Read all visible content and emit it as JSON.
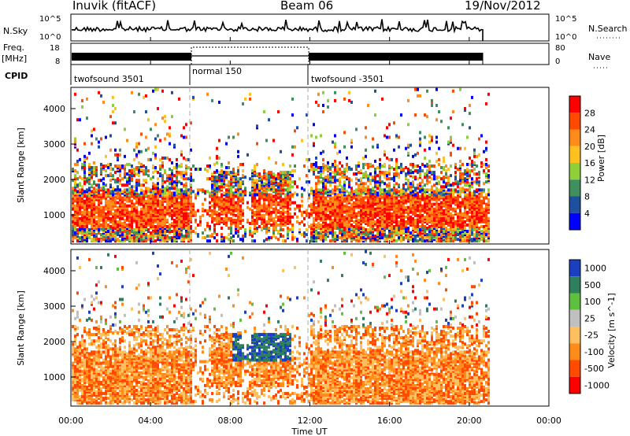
{
  "header": {
    "site": "Inuvik (fitACF)",
    "beam": "Beam 06",
    "date": "19/Nov/2012"
  },
  "strips": {
    "nsky": {
      "label": "N.Sky",
      "ticks": [
        "10^5",
        "10^0"
      ],
      "right_ticks": [
        "10^5",
        "10^0"
      ],
      "right_label": "N.Search"
    },
    "freq": {
      "label_top": "Freq.",
      "label_bottom": "[MHz]",
      "ticks": [
        "18",
        "8"
      ],
      "right_ticks": [
        "80",
        "0"
      ],
      "right_label": "Nave"
    },
    "cpid": {
      "label": "CPID",
      "segments": [
        {
          "name": "twofsound 3501",
          "start": 0,
          "end": 6
        },
        {
          "name": "normal 150",
          "start": 6,
          "end": 12
        },
        {
          "name": "twofsound -3501",
          "start": 12,
          "end": 21
        }
      ]
    }
  },
  "chart_data": [
    {
      "type": "heatmap",
      "title": "",
      "xlabel": "",
      "ylabel": "Slant Range [km]",
      "xlim": [
        0,
        24
      ],
      "ylim": [
        180,
        4600
      ],
      "yticks": [
        1000,
        2000,
        3000,
        4000
      ],
      "colorbar_label": "Power [dB]",
      "colorbar_ticks": [
        "28",
        "24",
        "20",
        "16",
        "12",
        "8",
        "4"
      ],
      "colorbar_colors": [
        "#ff0000",
        "#ff4a00",
        "#ff8c1a",
        "#ffc020",
        "#8fcf3a",
        "#3f8f5f",
        "#1f4f9f",
        "#0000ff"
      ],
      "data_end_hour": 21,
      "mode_boundaries_hours": [
        6,
        12
      ]
    },
    {
      "type": "heatmap",
      "title": "",
      "xlabel": "Time UT",
      "ylabel": "Slant Range [km]",
      "xlim": [
        0,
        24
      ],
      "ylim": [
        180,
        4600
      ],
      "yticks": [
        1000,
        2000,
        3000,
        4000
      ],
      "xticks": [
        "00:00",
        "04:00",
        "08:00",
        "12:00",
        "16:00",
        "20:00",
        "00:00"
      ],
      "colorbar_label": "Velocity [m s^-1]",
      "colorbar_ticks": [
        "1000",
        "500",
        "100",
        "25",
        "-25",
        "-100",
        "-500",
        "-1000"
      ],
      "colorbar_colors": [
        "#1a3fbf",
        "#2f7f5f",
        "#5fbf3f",
        "#c0c0c0",
        "#ffbf60",
        "#ff8c1a",
        "#ff4a00",
        "#ff0000"
      ],
      "data_end_hour": 21,
      "mode_boundaries_hours": [
        6,
        12
      ]
    }
  ]
}
